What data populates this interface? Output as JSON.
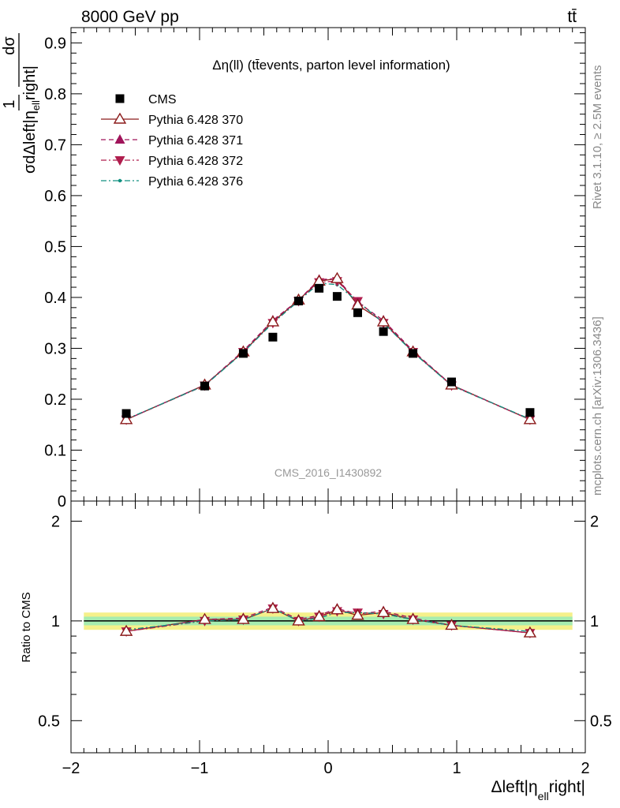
{
  "header": {
    "energy_label": "8000 GeV pp",
    "process_label": "tt̄",
    "plot_title": "Δη(ll) (tt̄events, parton level information)",
    "analysis_label": "CMS_2016_I1430892",
    "rivet_label": "Rivet 3.1.10, ≥ 2.5M events",
    "site_label": "mcplots.cern.ch [arXiv:1306.3436]"
  },
  "axes": {
    "y_main_label": "1/σ dσ/dΔleft|η_ell right|",
    "y_main_num": "dσ",
    "y_main_den": "σdΔleft|η",
    "y_main_den_sub": "ell",
    "y_main_den_end": "right|",
    "y_ratio_label": "Ratio to CMS",
    "x_label_main": "Δleft|η",
    "x_label_sub": "ell",
    "x_label_end": "right|"
  },
  "legend": [
    {
      "name": "CMS",
      "color": "#000000",
      "marker": "square",
      "dash": "none"
    },
    {
      "name": "Pythia 6.428 370",
      "color": "#8b1a1a",
      "marker": "triangle-up-open",
      "dash": "solid"
    },
    {
      "name": "Pythia 6.428 371",
      "color": "#a0145a",
      "marker": "triangle-up",
      "dash": "dashed"
    },
    {
      "name": "Pythia 6.428 372",
      "color": "#b01e4e",
      "marker": "triangle-down",
      "dash": "dashdot"
    },
    {
      "name": "Pythia 6.428 376",
      "color": "#109080",
      "marker": "dot",
      "dash": "dashdot"
    }
  ],
  "chart_data": [
    {
      "type": "scatter",
      "panel": "main",
      "xlim": [
        -2,
        2
      ],
      "ylim": [
        0,
        0.93
      ],
      "y_ticks": [
        "0",
        "0.1",
        "0.2",
        "0.3",
        "0.4",
        "0.5",
        "0.6",
        "0.7",
        "0.8",
        "0.9"
      ],
      "x": [
        -1.57,
        -0.96,
        -0.66,
        -0.43,
        -0.23,
        -0.07,
        0.07,
        0.23,
        0.43,
        0.66,
        0.96,
        1.57
      ],
      "series": [
        {
          "name": "CMS",
          "values": [
            0.172,
            0.226,
            0.29,
            0.322,
            0.393,
            0.418,
            0.402,
            0.37,
            0.333,
            0.29,
            0.234,
            0.174
          ]
        },
        {
          "name": "Pythia 6.428 370",
          "values": [
            0.16,
            0.228,
            0.293,
            0.352,
            0.395,
            0.432,
            0.437,
            0.385,
            0.352,
            0.293,
            0.228,
            0.16
          ]
        },
        {
          "name": "Pythia 6.428 371",
          "values": [
            0.16,
            0.228,
            0.295,
            0.355,
            0.395,
            0.435,
            0.437,
            0.39,
            0.355,
            0.295,
            0.228,
            0.16
          ]
        },
        {
          "name": "Pythia 6.428 372",
          "values": [
            0.16,
            0.227,
            0.293,
            0.35,
            0.393,
            0.43,
            0.432,
            0.393,
            0.35,
            0.293,
            0.227,
            0.16
          ]
        },
        {
          "name": "Pythia 6.428 376",
          "values": [
            0.161,
            0.227,
            0.292,
            0.35,
            0.393,
            0.428,
            0.425,
            0.392,
            0.35,
            0.292,
            0.227,
            0.161
          ]
        }
      ]
    },
    {
      "type": "line",
      "panel": "ratio",
      "xlim": [
        -2,
        2
      ],
      "ylim": [
        0.4,
        2.3
      ],
      "y_scale": "log",
      "y_ticks": [
        "0.5",
        "1",
        "2"
      ],
      "x_ticks": [
        "−2",
        "−1",
        "0",
        "1",
        "2"
      ],
      "x": [
        -1.57,
        -0.96,
        -0.66,
        -0.43,
        -0.23,
        -0.07,
        0.07,
        0.23,
        0.43,
        0.66,
        0.96,
        1.57
      ],
      "band_inner": 0.03,
      "band_outer": 0.06,
      "series": [
        {
          "name": "Pythia 6.428 370",
          "values": [
            0.93,
            1.01,
            1.01,
            1.09,
            1.0,
            1.03,
            1.08,
            1.04,
            1.06,
            1.01,
            0.97,
            0.92
          ]
        },
        {
          "name": "Pythia 6.428 371",
          "values": [
            0.93,
            1.01,
            1.02,
            1.1,
            1.01,
            1.04,
            1.09,
            1.05,
            1.07,
            1.02,
            0.97,
            0.92
          ]
        },
        {
          "name": "Pythia 6.428 372",
          "values": [
            0.93,
            1.0,
            1.01,
            1.09,
            1.0,
            1.03,
            1.07,
            1.06,
            1.05,
            1.01,
            0.97,
            0.92
          ]
        },
        {
          "name": "Pythia 6.428 376",
          "values": [
            0.94,
            1.0,
            1.01,
            1.09,
            1.0,
            1.02,
            1.06,
            1.06,
            1.05,
            1.01,
            0.97,
            0.93
          ]
        }
      ]
    }
  ]
}
